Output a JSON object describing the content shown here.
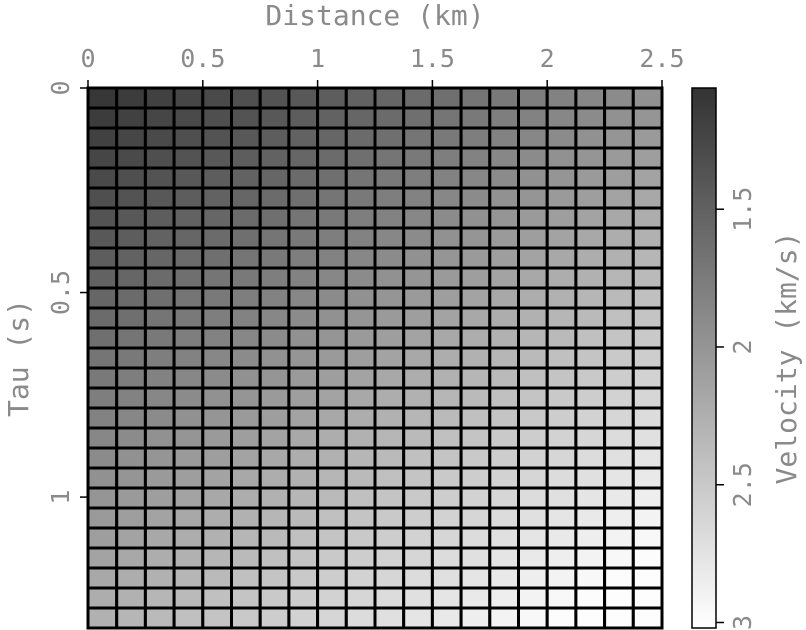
{
  "chart_data": {
    "type": "heatmap",
    "x_label": "Distance (km)",
    "y_label": "Tau (s)",
    "colorbar_label": "Velocity (km/s)",
    "xlim": [
      0,
      2.5
    ],
    "xticks": [
      0,
      0.5,
      1,
      1.5,
      2,
      2.5
    ],
    "ylim": [
      0,
      1.32
    ],
    "yticks": [
      0,
      0.5,
      1
    ],
    "y_inverted": true,
    "clim": [
      1.06,
      3.02
    ],
    "cticks": [
      1.5,
      2,
      2.5,
      3
    ],
    "colormap": [
      "#333333",
      "#ffffff"
    ],
    "cell_border_color": "#000000",
    "values": [
      [
        1.1,
        1.15,
        1.19,
        1.24,
        1.28,
        1.33,
        1.37,
        1.42,
        1.46,
        1.51,
        1.55,
        1.6,
        1.64,
        1.69,
        1.73,
        1.78,
        1.82,
        1.87,
        1.91,
        1.96
      ],
      [
        1.15,
        1.19,
        1.24,
        1.28,
        1.33,
        1.37,
        1.42,
        1.46,
        1.51,
        1.55,
        1.6,
        1.64,
        1.69,
        1.73,
        1.78,
        1.82,
        1.87,
        1.91,
        1.96,
        2
      ],
      [
        1.19,
        1.24,
        1.28,
        1.33,
        1.37,
        1.42,
        1.46,
        1.51,
        1.55,
        1.6,
        1.64,
        1.69,
        1.73,
        1.78,
        1.82,
        1.87,
        1.91,
        1.96,
        2,
        2.05
      ],
      [
        1.24,
        1.28,
        1.33,
        1.37,
        1.42,
        1.46,
        1.51,
        1.55,
        1.6,
        1.64,
        1.69,
        1.73,
        1.78,
        1.82,
        1.87,
        1.91,
        1.96,
        2,
        2.05,
        2.09
      ],
      [
        1.28,
        1.33,
        1.37,
        1.42,
        1.46,
        1.51,
        1.55,
        1.6,
        1.64,
        1.69,
        1.73,
        1.78,
        1.82,
        1.87,
        1.91,
        1.96,
        2,
        2.05,
        2.09,
        2.14
      ],
      [
        1.33,
        1.37,
        1.42,
        1.46,
        1.51,
        1.55,
        1.6,
        1.64,
        1.69,
        1.73,
        1.78,
        1.82,
        1.87,
        1.91,
        1.96,
        2,
        2.05,
        2.09,
        2.14,
        2.18
      ],
      [
        1.37,
        1.42,
        1.46,
        1.51,
        1.55,
        1.6,
        1.64,
        1.69,
        1.73,
        1.78,
        1.82,
        1.87,
        1.91,
        1.96,
        2,
        2.05,
        2.09,
        2.14,
        2.18,
        2.23
      ],
      [
        1.42,
        1.46,
        1.51,
        1.55,
        1.6,
        1.64,
        1.69,
        1.73,
        1.78,
        1.82,
        1.87,
        1.91,
        1.96,
        2,
        2.05,
        2.09,
        2.14,
        2.18,
        2.23,
        2.27
      ],
      [
        1.46,
        1.51,
        1.55,
        1.6,
        1.64,
        1.69,
        1.73,
        1.78,
        1.82,
        1.87,
        1.91,
        1.96,
        2,
        2.05,
        2.09,
        2.14,
        2.18,
        2.23,
        2.27,
        2.32
      ],
      [
        1.51,
        1.55,
        1.6,
        1.64,
        1.69,
        1.73,
        1.78,
        1.82,
        1.87,
        1.91,
        1.96,
        2,
        2.05,
        2.09,
        2.14,
        2.18,
        2.23,
        2.27,
        2.32,
        2.36
      ],
      [
        1.55,
        1.6,
        1.64,
        1.69,
        1.73,
        1.78,
        1.82,
        1.87,
        1.91,
        1.96,
        2,
        2.05,
        2.09,
        2.14,
        2.18,
        2.23,
        2.27,
        2.32,
        2.36,
        2.41
      ],
      [
        1.6,
        1.64,
        1.69,
        1.73,
        1.78,
        1.82,
        1.87,
        1.91,
        1.96,
        2,
        2.05,
        2.09,
        2.14,
        2.18,
        2.23,
        2.27,
        2.32,
        2.36,
        2.41,
        2.45
      ],
      [
        1.64,
        1.69,
        1.73,
        1.78,
        1.82,
        1.87,
        1.91,
        1.96,
        2,
        2.05,
        2.09,
        2.14,
        2.18,
        2.23,
        2.27,
        2.32,
        2.36,
        2.41,
        2.45,
        2.5
      ],
      [
        1.69,
        1.73,
        1.78,
        1.82,
        1.87,
        1.91,
        1.96,
        2,
        2.05,
        2.09,
        2.14,
        2.18,
        2.23,
        2.27,
        2.32,
        2.36,
        2.41,
        2.45,
        2.5,
        2.54
      ],
      [
        1.73,
        1.78,
        1.82,
        1.87,
        1.91,
        1.96,
        2,
        2.05,
        2.09,
        2.14,
        2.18,
        2.23,
        2.27,
        2.32,
        2.36,
        2.41,
        2.45,
        2.5,
        2.54,
        2.59
      ],
      [
        1.78,
        1.82,
        1.87,
        1.91,
        1.96,
        2,
        2.05,
        2.09,
        2.14,
        2.18,
        2.23,
        2.27,
        2.32,
        2.36,
        2.41,
        2.45,
        2.5,
        2.54,
        2.59,
        2.63
      ],
      [
        1.82,
        1.87,
        1.91,
        1.96,
        2,
        2.05,
        2.09,
        2.14,
        2.18,
        2.23,
        2.27,
        2.32,
        2.36,
        2.41,
        2.45,
        2.5,
        2.54,
        2.59,
        2.63,
        2.68
      ],
      [
        1.87,
        1.91,
        1.96,
        2,
        2.05,
        2.09,
        2.14,
        2.18,
        2.23,
        2.27,
        2.32,
        2.36,
        2.41,
        2.45,
        2.5,
        2.54,
        2.59,
        2.63,
        2.68,
        2.72
      ],
      [
        1.91,
        1.96,
        2,
        2.05,
        2.09,
        2.14,
        2.18,
        2.23,
        2.27,
        2.32,
        2.36,
        2.41,
        2.45,
        2.5,
        2.54,
        2.59,
        2.63,
        2.68,
        2.72,
        2.77
      ],
      [
        1.96,
        2,
        2.05,
        2.09,
        2.14,
        2.18,
        2.23,
        2.27,
        2.32,
        2.36,
        2.41,
        2.45,
        2.5,
        2.54,
        2.59,
        2.63,
        2.68,
        2.72,
        2.77,
        2.81
      ],
      [
        2,
        2.05,
        2.09,
        2.14,
        2.18,
        2.23,
        2.27,
        2.32,
        2.36,
        2.41,
        2.45,
        2.5,
        2.54,
        2.59,
        2.63,
        2.68,
        2.72,
        2.77,
        2.81,
        2.86
      ],
      [
        2.05,
        2.09,
        2.14,
        2.18,
        2.23,
        2.27,
        2.32,
        2.36,
        2.41,
        2.45,
        2.5,
        2.54,
        2.59,
        2.63,
        2.68,
        2.72,
        2.77,
        2.81,
        2.86,
        2.9
      ],
      [
        2.09,
        2.14,
        2.18,
        2.23,
        2.27,
        2.32,
        2.36,
        2.41,
        2.45,
        2.5,
        2.54,
        2.59,
        2.63,
        2.68,
        2.72,
        2.77,
        2.81,
        2.86,
        2.9,
        2.95
      ],
      [
        2.14,
        2.18,
        2.23,
        2.27,
        2.32,
        2.36,
        2.41,
        2.45,
        2.5,
        2.54,
        2.59,
        2.63,
        2.68,
        2.72,
        2.77,
        2.81,
        2.86,
        2.9,
        2.95,
        2.99
      ],
      [
        2.18,
        2.23,
        2.27,
        2.32,
        2.36,
        2.41,
        2.45,
        2.5,
        2.54,
        2.59,
        2.63,
        2.68,
        2.72,
        2.77,
        2.81,
        2.86,
        2.9,
        2.95,
        2.99,
        3
      ],
      [
        2.23,
        2.27,
        2.32,
        2.36,
        2.41,
        2.45,
        2.5,
        2.54,
        2.59,
        2.63,
        2.68,
        2.72,
        2.77,
        2.81,
        2.86,
        2.9,
        2.95,
        2.99,
        3,
        3
      ],
      [
        2.27,
        2.32,
        2.36,
        2.41,
        2.45,
        2.5,
        2.54,
        2.59,
        2.63,
        2.68,
        2.72,
        2.77,
        2.81,
        2.86,
        2.9,
        2.95,
        2.99,
        3,
        3,
        3
      ]
    ]
  }
}
